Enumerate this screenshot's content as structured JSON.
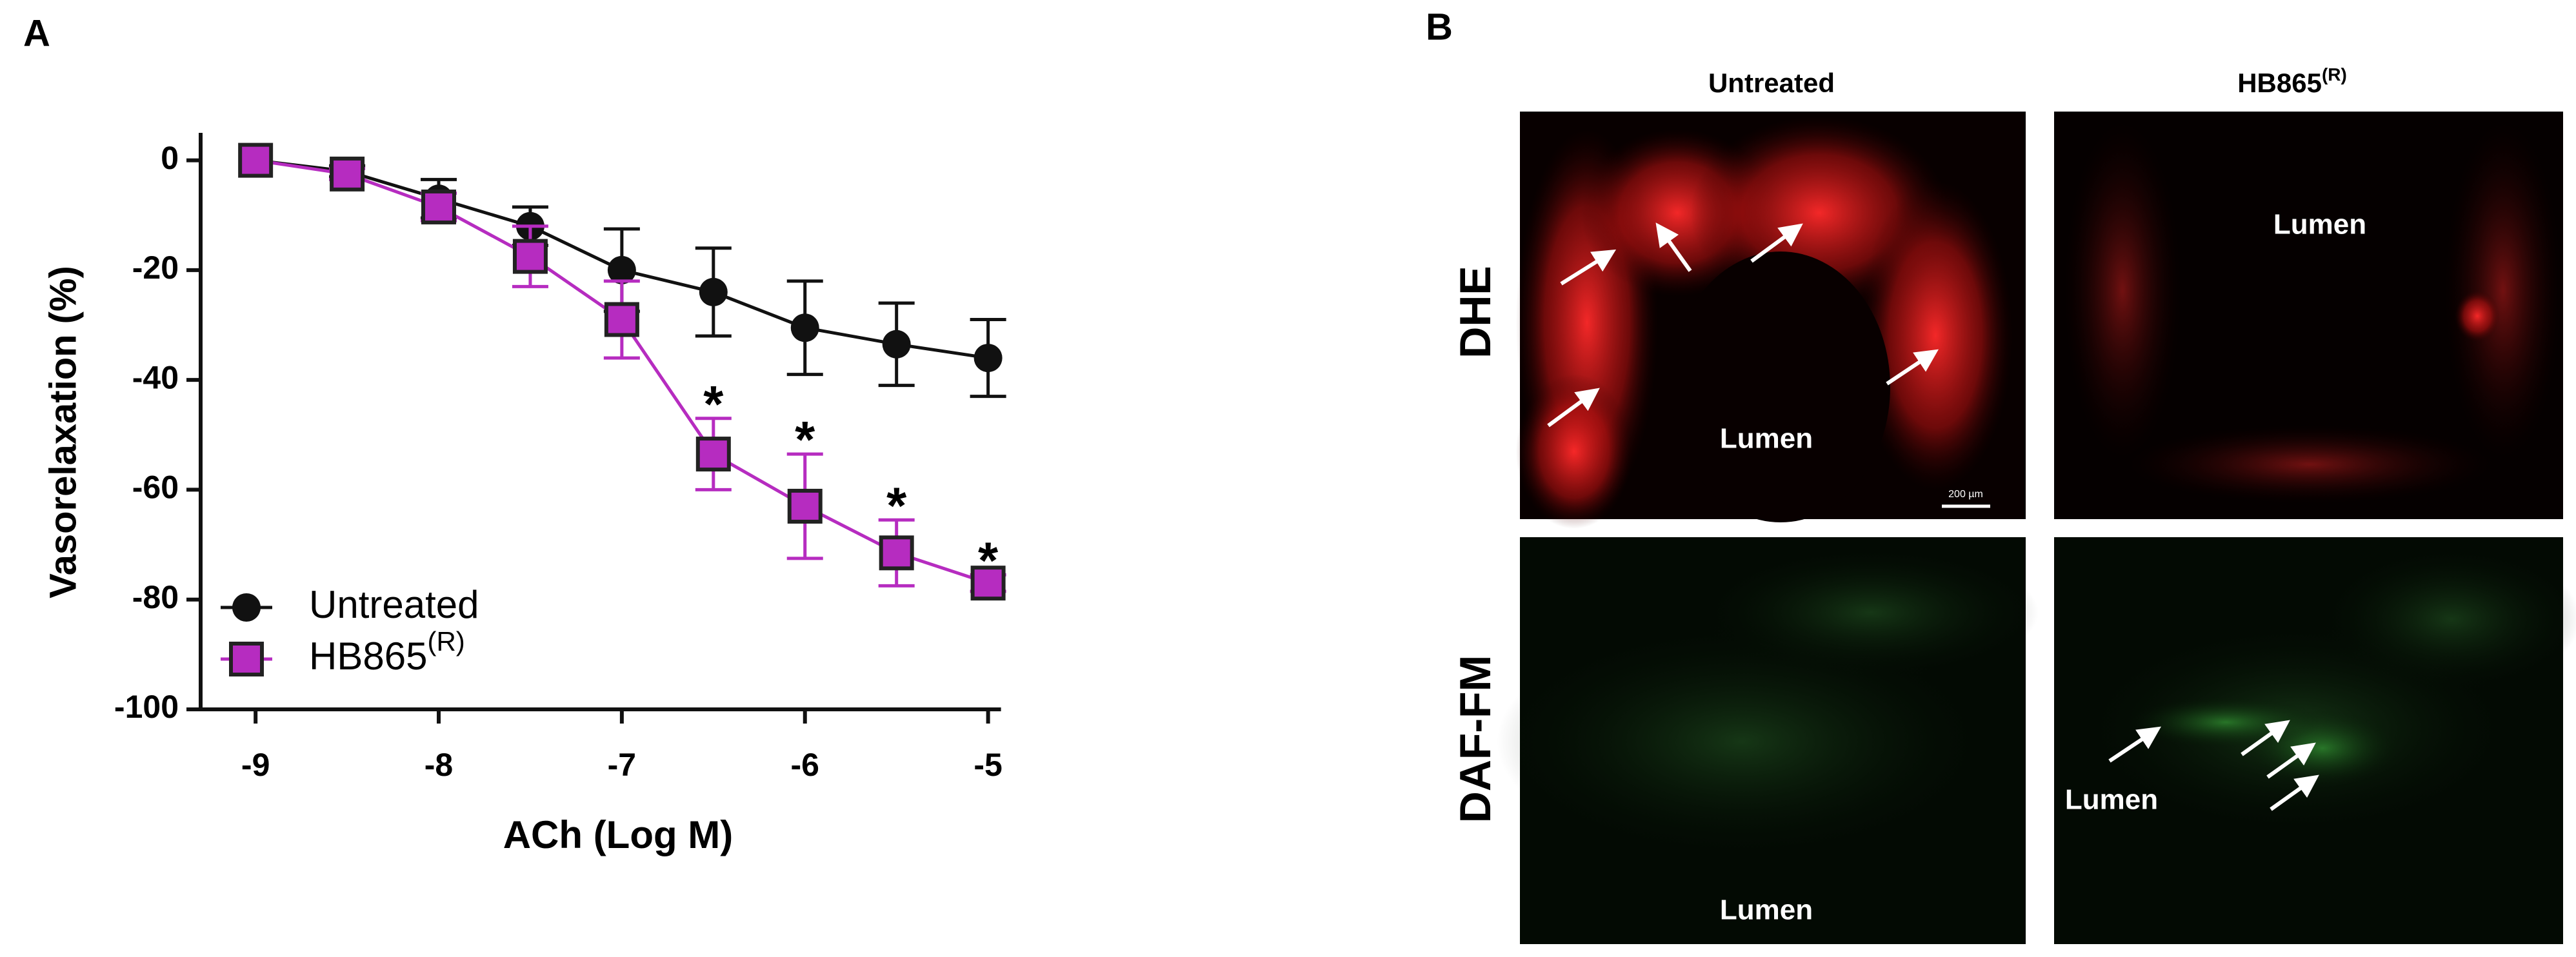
{
  "panel_a": {
    "label": "A"
  },
  "chart_data": {
    "type": "line",
    "xlabel": "ACh (Log M)",
    "ylabel": "Vasorelaxation (%)",
    "x": [
      -9,
      -8.5,
      -8,
      -7.5,
      -7,
      -6.5,
      -6,
      -5.5,
      -5
    ],
    "series": [
      {
        "name": "Untreated",
        "color": "#111111",
        "marker": "circle",
        "values": [
          0,
          -2,
          -7,
          -12,
          -20,
          -24,
          -30.5,
          -33.5,
          -36
        ],
        "errors": [
          0,
          1,
          3.5,
          3.5,
          7.5,
          8,
          8.5,
          7.5,
          7
        ]
      },
      {
        "name": "HB865",
        "name_superscript": "(R)",
        "color": "#b62cc0",
        "marker": "square",
        "values": [
          0,
          -2.5,
          -8.5,
          -17.5,
          -29,
          -53.5,
          -63,
          -71.5,
          -77
        ],
        "errors": [
          0,
          1,
          2.5,
          5.5,
          7,
          6.5,
          9.5,
          6,
          1.5
        ]
      }
    ],
    "annotations": [
      {
        "x": -6.5,
        "text": "*"
      },
      {
        "x": -6,
        "text": "*"
      },
      {
        "x": -5.5,
        "text": "*"
      },
      {
        "x": -5,
        "text": "*"
      }
    ],
    "xlim": [
      -9.3,
      -4.9
    ],
    "xticks": [
      -9,
      -8,
      -7,
      -6,
      -5
    ],
    "ylim": [
      -100,
      5
    ],
    "yticks": [
      0,
      -20,
      -40,
      -60,
      -80,
      -100
    ],
    "grid": false,
    "legend": "lower left"
  },
  "panel_b": {
    "label": "B",
    "columns": [
      {
        "text": "Untreated"
      },
      {
        "text": "HB865",
        "superscript": "(R)"
      }
    ],
    "rows": [
      "DHE",
      "DAF-FM"
    ],
    "lumen_labels": [
      "Lumen",
      "Lumen",
      "Lumen",
      "Lumen"
    ],
    "scale_bar": "200 µm"
  }
}
